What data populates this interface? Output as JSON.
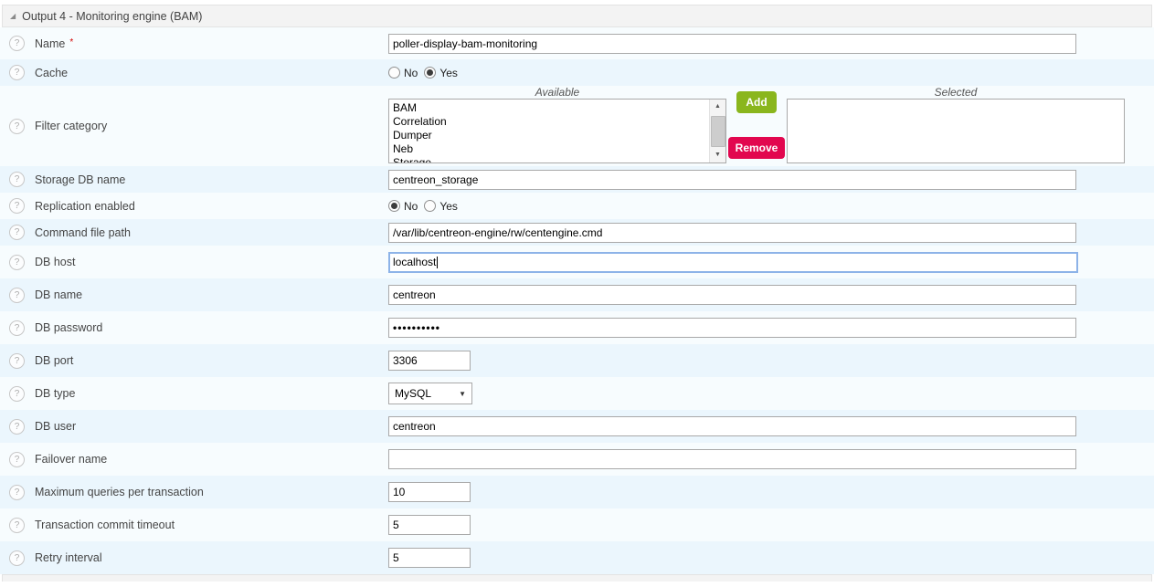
{
  "header": {
    "title": "Output 4 - Monitoring engine (BAM)",
    "collapse_icon": "triangle-se-icon"
  },
  "radio": {
    "no": "No",
    "yes": "Yes"
  },
  "filter": {
    "available_label": "Available",
    "selected_label": "Selected",
    "available_options": [
      "BAM",
      "Correlation",
      "Dumper",
      "Neb",
      "Storage"
    ],
    "selected_options": [],
    "add_button": "Add",
    "remove_button": "Remove",
    "add_color": "#8ab61d",
    "remove_color": "#e2074f"
  },
  "fields": {
    "name": {
      "label": "Name",
      "required": "*",
      "value": "poller-display-bam-monitoring"
    },
    "cache": {
      "label": "Cache",
      "value": "Yes"
    },
    "filter_category": {
      "label": "Filter category"
    },
    "storage_db_name": {
      "label": "Storage DB name",
      "value": "centreon_storage"
    },
    "replication_enabled": {
      "label": "Replication enabled",
      "value": "No"
    },
    "command_file_path": {
      "label": "Command file path",
      "value": "/var/lib/centreon-engine/rw/centengine.cmd"
    },
    "db_host": {
      "label": "DB host",
      "value": "localhost",
      "focused": true
    },
    "db_name": {
      "label": "DB name",
      "value": "centreon"
    },
    "db_password": {
      "label": "DB password",
      "value": "••••••••••"
    },
    "db_port": {
      "label": "DB port",
      "value": "3306"
    },
    "db_type": {
      "label": "DB type",
      "value": "MySQL"
    },
    "db_user": {
      "label": "DB user",
      "value": "centreon"
    },
    "failover_name": {
      "label": "Failover name",
      "value": ""
    },
    "max_queries": {
      "label": "Maximum queries per transaction",
      "value": "10"
    },
    "transaction_commit_timeout": {
      "label": "Transaction commit timeout",
      "value": "5"
    },
    "retry_interval": {
      "label": "Retry interval",
      "value": "5"
    }
  }
}
